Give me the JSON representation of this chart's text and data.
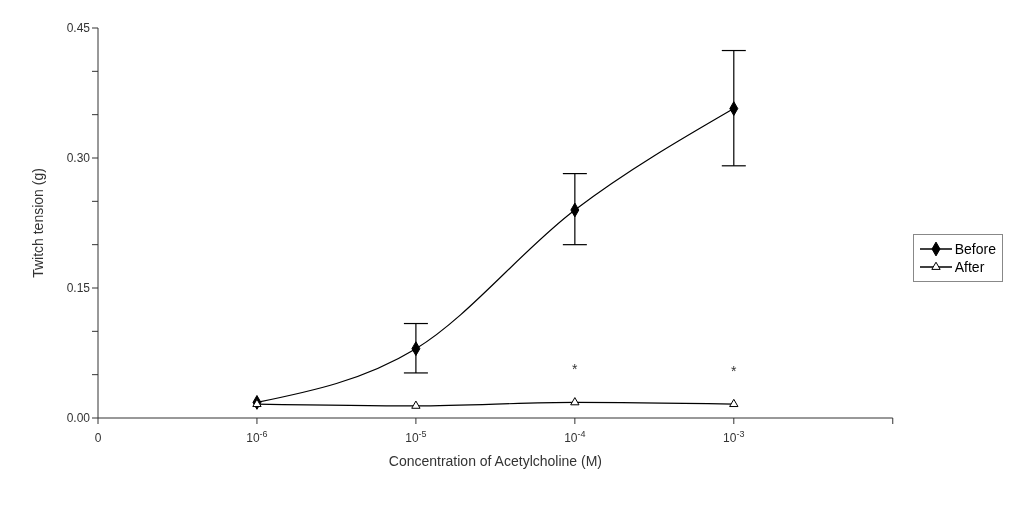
{
  "chart_data": {
    "type": "line",
    "xlabel": "Concentration of Acetylcholine (M)",
    "ylabel": "Twitch tension (g)",
    "categories": [
      "0",
      "10$^{-6}$",
      "10$^{-5}$",
      "10$^{-4}$",
      "10$^{-3}$",
      null
    ],
    "series": [
      {
        "name": "Before",
        "color": "#000000",
        "marker": "diamond",
        "values": [
          null,
          0.018,
          0.08,
          0.24,
          0.357,
          null
        ],
        "errors": [
          null,
          null,
          [
            0.052,
            0.109
          ],
          [
            0.2,
            0.282
          ],
          [
            0.291,
            0.424
          ],
          null
        ]
      },
      {
        "name": "After",
        "color": "#000000",
        "marker": "triangle",
        "values": [
          null,
          0.016,
          0.014,
          0.018,
          0.016,
          null
        ]
      }
    ],
    "ylim": [
      0,
      0.45
    ],
    "yticks": [
      {
        "value": 0,
        "label": "0.00"
      },
      {
        "value": 0.05,
        "label": null
      },
      {
        "value": 0.1,
        "label": null
      },
      {
        "value": 0.15,
        "label": "0.15"
      },
      {
        "value": 0.2,
        "label": null
      },
      {
        "value": 0.25,
        "label": null
      },
      {
        "value": 0.3,
        "label": "0.30"
      },
      {
        "value": 0.35,
        "label": null
      },
      {
        "value": 0.4,
        "label": null
      },
      {
        "value": 0.45,
        "label": "0.45"
      }
    ],
    "annotations": [
      "*",
      "*"
    ],
    "legend": "right",
    "grid": false,
    "line_style": "solid"
  }
}
